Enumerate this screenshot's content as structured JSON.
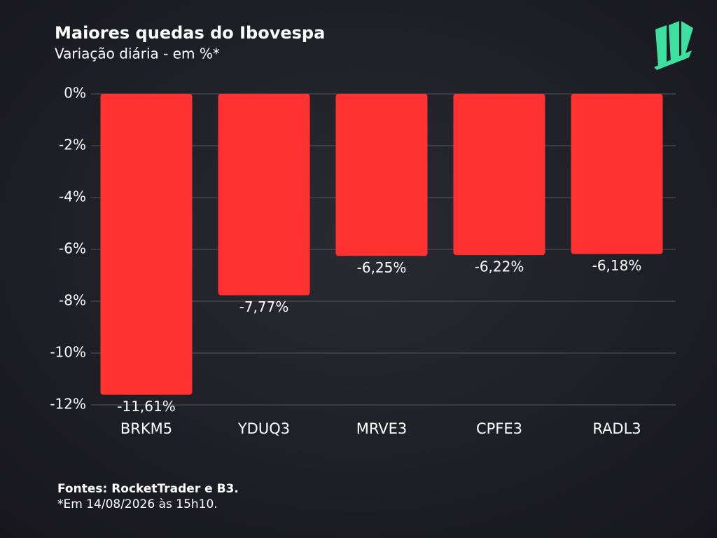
{
  "chart_data": {
    "type": "bar",
    "title": "Maiores quedas do Ibovespa",
    "subtitle": "Variação diária - em %*",
    "categories": [
      "BRKM5",
      "YDUQ3",
      "MRVE3",
      "CPFE3",
      "RADL3"
    ],
    "values": [
      -11.61,
      -7.77,
      -6.25,
      -6.22,
      -6.18
    ],
    "value_labels": [
      "-11,61%",
      "-7,77%",
      "-6,25%",
      "-6,22%",
      "-6,18%"
    ],
    "color": "#ff3131",
    "ylim": [
      -12,
      0
    ],
    "yticks": [
      {
        "value": 0,
        "label": "0%"
      },
      {
        "value": -2,
        "label": "-2%"
      },
      {
        "value": -4,
        "label": "-4%"
      },
      {
        "value": -6,
        "label": "-6%"
      },
      {
        "value": -8,
        "label": "-8%"
      },
      {
        "value": -10,
        "label": "-10%"
      },
      {
        "value": -12,
        "label": "-12%"
      }
    ],
    "grid": true,
    "source": "Fontes: RocketTrader e B3.",
    "note": "*Em 14/08/2026 às 15h10."
  }
}
